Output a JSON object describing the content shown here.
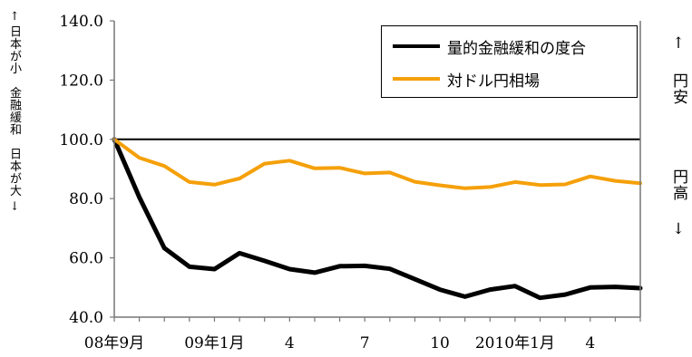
{
  "chart_data": {
    "type": "line",
    "title": "",
    "ylabel": "← 日本が小　金融緩和　日本が大 →",
    "right_labels": {
      "top": "↑ 円安",
      "bottom": "円高 ↓"
    },
    "ylim": [
      40,
      140
    ],
    "yticks": [
      "140.0",
      "120.0",
      "100.0",
      "80.0",
      "60.0",
      "40.0"
    ],
    "ytick_values": [
      140,
      120,
      100,
      80,
      60,
      40
    ],
    "xtick_labels": [
      {
        "index": 0,
        "label": "08年9月"
      },
      {
        "index": 4,
        "label": "09年1月"
      },
      {
        "index": 7,
        "label": "4"
      },
      {
        "index": 10,
        "label": "7"
      },
      {
        "index": 13,
        "label": "10"
      },
      {
        "index": 16,
        "label": "2010年1月"
      },
      {
        "index": 19,
        "label": "4"
      }
    ],
    "x_count": 22,
    "reference_line": 100,
    "legend_position": "top-right",
    "series": [
      {
        "name": "量的金融緩和の度合",
        "color": "#000000",
        "values": [
          100.0,
          80.5,
          63.3,
          57.0,
          56.2,
          61.6,
          59.0,
          56.2,
          55.0,
          57.2,
          57.3,
          56.3,
          52.8,
          49.3,
          46.9,
          49.3,
          50.5,
          46.5,
          47.6,
          50.0,
          50.2,
          49.8
        ]
      },
      {
        "name": "対ドル円相場",
        "color": "#f5a00a",
        "values": [
          100.0,
          93.8,
          91.0,
          85.6,
          84.7,
          86.8,
          91.8,
          92.8,
          90.2,
          90.4,
          88.5,
          88.8,
          85.7,
          84.5,
          83.5,
          83.9,
          85.6,
          84.6,
          84.8,
          87.5,
          86.0,
          85.2
        ]
      }
    ]
  }
}
